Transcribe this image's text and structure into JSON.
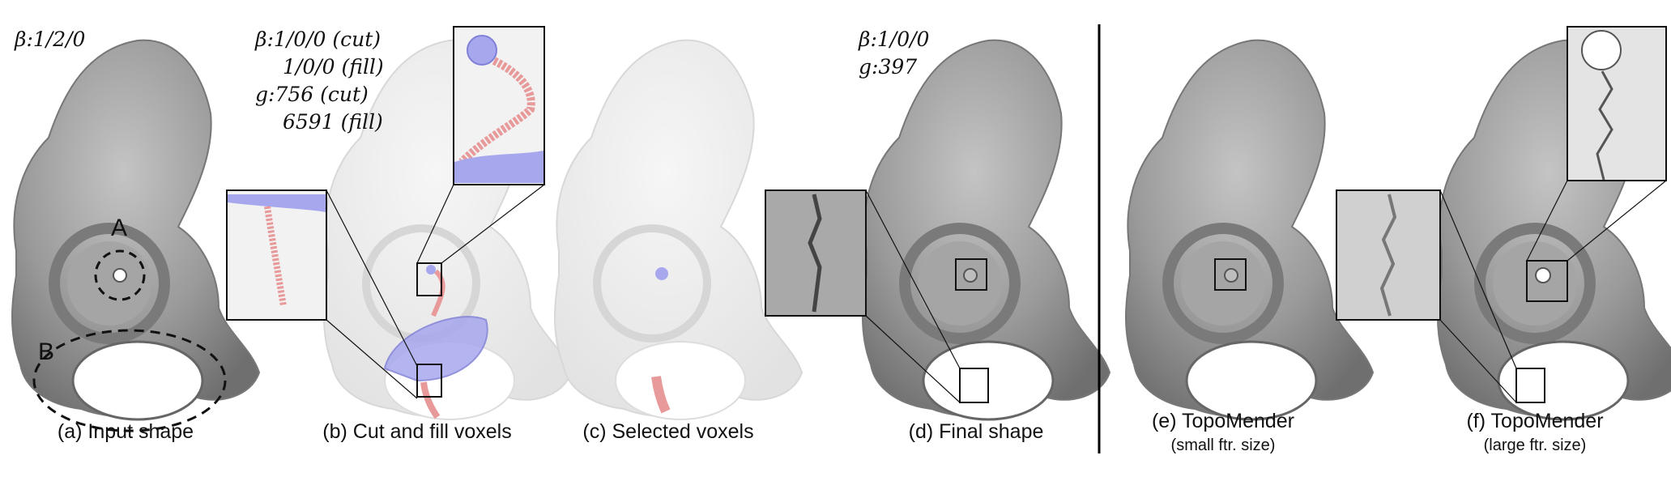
{
  "panels": {
    "a": {
      "caption": "(a) Input shape",
      "beta_symbol": "β:",
      "beta": "1/2/0",
      "region_a": "A",
      "region_b": "B"
    },
    "b": {
      "caption": "(b) Cut and fill voxels",
      "beta_symbol": "β:",
      "beta_cut": "1/0/0 (cut)",
      "beta_fill": "1/0/0 (fill)",
      "g_symbol": "g:",
      "g_cut": "756 (cut)",
      "g_fill": "6591 (fill)"
    },
    "c": {
      "caption": "(c) Selected voxels"
    },
    "d": {
      "caption": "(d) Final shape",
      "beta_symbol": "β:",
      "beta": "1/0/0",
      "g_symbol": "g:",
      "g": "397"
    },
    "e": {
      "caption": "(e) TopoMender",
      "subcaption": "(small ftr. size)"
    },
    "f": {
      "caption": "(f) TopoMender",
      "subcaption": "(large ftr. size)"
    }
  },
  "colors": {
    "bone": "#8e8e8e",
    "bone_light": "#e9e9e9",
    "cut_voxels": "#e89a9a",
    "fill_voxels": "#a7a7ee",
    "divider": "#000000"
  }
}
